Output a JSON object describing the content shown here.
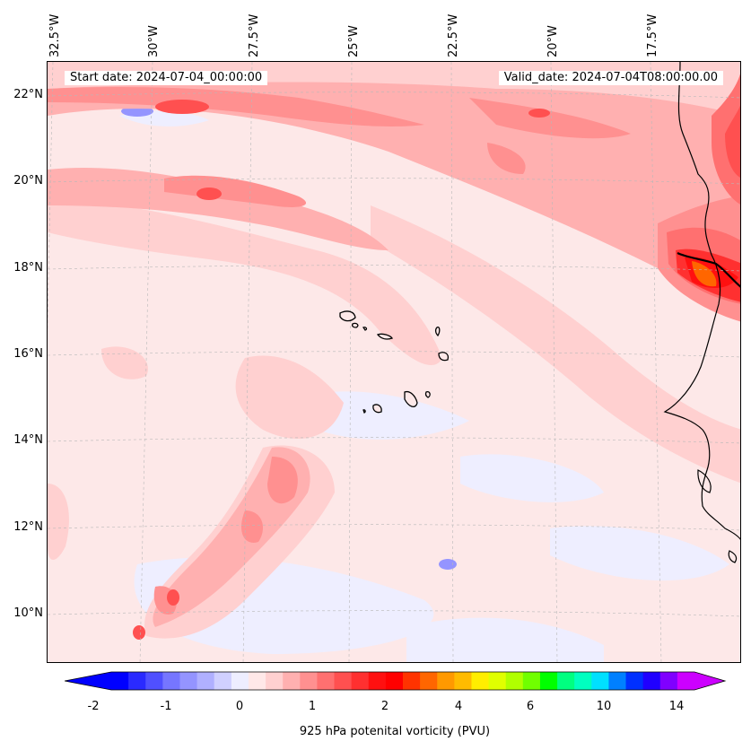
{
  "header": {
    "start_date": "Start date: 2024-07-04_00:00:00",
    "valid_date": "Valid_date: 2024-07-04T08:00:00.00"
  },
  "longitude_labels": [
    "32.5°W",
    "30°W",
    "27.5°W",
    "25°W",
    "22.5°W",
    "20°W",
    "17.5°W"
  ],
  "latitude_labels": [
    "22°N",
    "20°N",
    "18°N",
    "16°N",
    "14°N",
    "12°N",
    "10°N"
  ],
  "colorbar": {
    "label": "925 hPa potenital vorticity (PVU)",
    "tick_labels": [
      "-2",
      "-1",
      "0",
      "1",
      "2",
      "4",
      "6",
      "10",
      "14"
    ],
    "colors": [
      "#0000ff",
      "#2a2aff",
      "#5050ff",
      "#7676ff",
      "#9494ff",
      "#b0b0ff",
      "#d0d0ff",
      "#eeeeff",
      "#ffe8e8",
      "#ffd0d0",
      "#ffb0b0",
      "#ff9090",
      "#ff7070",
      "#ff5050",
      "#ff3030",
      "#ff1010",
      "#ff0000",
      "#ff3300",
      "#ff6600",
      "#ff9900",
      "#ffbb00",
      "#ffee00",
      "#e0ff00",
      "#b0ff00",
      "#70ff00",
      "#00ff00",
      "#00ff80",
      "#00ffc0",
      "#00e0ff",
      "#0080ff",
      "#0030ff",
      "#2000ff",
      "#8000ff",
      "#cc00ff"
    ]
  },
  "colors": {
    "background_field": "#fde8e8",
    "coast": "#000000"
  }
}
